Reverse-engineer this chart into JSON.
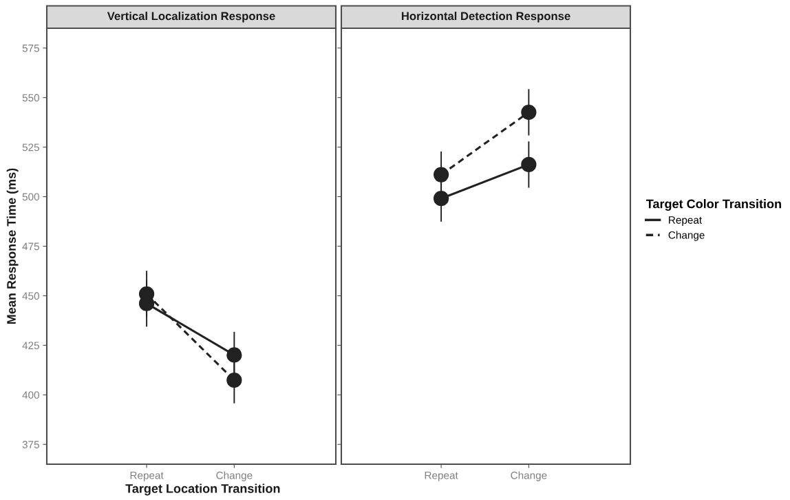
{
  "chart_data": [
    {
      "type": "line",
      "title": "Vertical Localization Response",
      "xlabel": "Target Location Transition",
      "ylabel": "Mean Response Time (ms)",
      "categories": [
        "Repeat",
        "Change"
      ],
      "ylim": [
        365,
        585
      ],
      "yticks": [
        375,
        400,
        425,
        450,
        475,
        500,
        525,
        550,
        575
      ],
      "legend_title": "Target Color Transition",
      "grid": false,
      "legend": "right",
      "marker": "circle",
      "series": [
        {
          "name": "Repeat",
          "color": "#222222",
          "line_style": "solid",
          "values": [
            446.1,
            420.1
          ],
          "errors": [
            11.7,
            11.7
          ]
        },
        {
          "name": "Change",
          "color": "#222222",
          "line_style": "dashed",
          "values": [
            450.9,
            407.4
          ],
          "errors": [
            11.7,
            11.7
          ]
        }
      ]
    },
    {
      "type": "line",
      "title": "Horizontal Detection Response",
      "categories": [
        "Repeat",
        "Change"
      ],
      "ylim": [
        365,
        585
      ],
      "yticks": [
        375,
        400,
        425,
        450,
        475,
        500,
        525,
        550,
        575
      ],
      "tick_labels": "x",
      "grid": false,
      "marker": "circle",
      "series": [
        {
          "color": "#222222",
          "line_style": "solid",
          "values": [
            499.1,
            516.2
          ],
          "errors": [
            11.7,
            11.7
          ]
        },
        {
          "color": "#222222",
          "line_style": "dashed",
          "values": [
            511.1,
            542.6
          ],
          "errors": [
            11.7,
            11.7
          ]
        }
      ]
    }
  ]
}
